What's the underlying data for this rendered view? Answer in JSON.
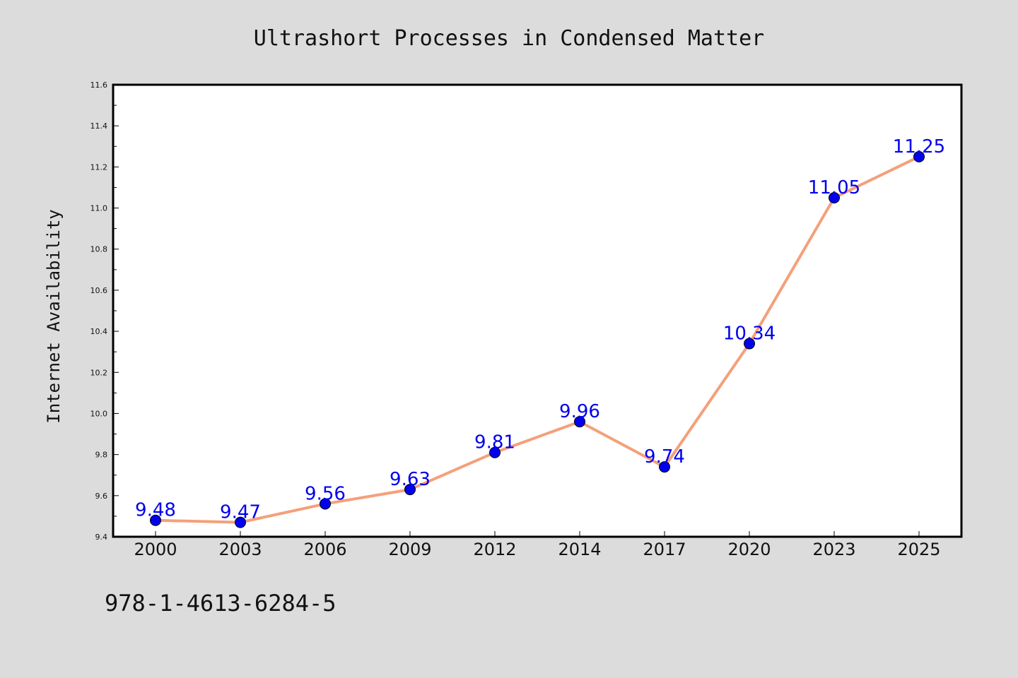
{
  "isbn": "978-1-4613-6284-5",
  "colors": {
    "background": "#dcdcdc",
    "plot_area": "#ffffff",
    "line": "#f4a07a",
    "marker": "#0000ee",
    "data_label": "#0000ee"
  },
  "chart_data": {
    "type": "line",
    "title": "Ultrashort Processes in Condensed Matter",
    "xlabel": "",
    "ylabel": "Internet Availability",
    "categories": [
      "2000",
      "2003",
      "2006",
      "2009",
      "2012",
      "2014",
      "2017",
      "2020",
      "2023",
      "2025"
    ],
    "values": [
      9.48,
      9.47,
      9.56,
      9.63,
      9.81,
      9.96,
      9.74,
      10.34,
      11.05,
      11.25
    ],
    "data_labels": [
      "9.48",
      "9.47",
      "9.56",
      "9.63",
      "9.81",
      "9.96",
      "9.74",
      "10.34",
      "11.05",
      "11.25"
    ],
    "ylim": [
      9.4,
      11.6
    ],
    "yticks": [
      "9.4",
      "9.6",
      "9.8",
      "10.0",
      "10.2",
      "10.4",
      "10.6",
      "10.8",
      "11.0",
      "11.2",
      "11.4",
      "11.6"
    ],
    "grid": false,
    "legend": "none"
  }
}
